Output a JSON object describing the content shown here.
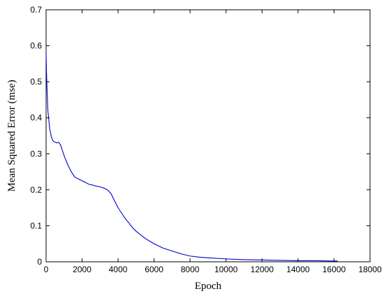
{
  "chart_data": {
    "type": "line",
    "title": "",
    "xlabel": "Epoch",
    "ylabel": "Mean Squared Error (mse)",
    "xlim": [
      0,
      18000
    ],
    "ylim": [
      0,
      0.7
    ],
    "xticks": [
      0,
      2000,
      4000,
      6000,
      8000,
      10000,
      12000,
      14000,
      16000,
      18000
    ],
    "xtick_labels": [
      "0",
      "2000",
      "4000",
      "6000",
      "8000",
      "10000",
      "12000",
      "14000",
      "16000",
      "18000"
    ],
    "yticks": [
      0,
      0.1,
      0.2,
      0.3,
      0.4,
      0.5,
      0.6,
      0.7
    ],
    "ytick_labels": [
      "0",
      "0.1",
      "0.2",
      "0.3",
      "0.4",
      "0.5",
      "0.6",
      "0.7"
    ],
    "grid": false,
    "series": [
      {
        "color": "#0000cc",
        "x": [
          0,
          20,
          60,
          100,
          200,
          300,
          400,
          600,
          700,
          800,
          900,
          1000,
          1200,
          1400,
          1600,
          1800,
          2000,
          2200,
          2400,
          2600,
          2800,
          3000,
          3200,
          3400,
          3600,
          3800,
          4000,
          4200,
          4400,
          4600,
          4800,
          5000,
          5500,
          6000,
          6500,
          7000,
          7500,
          8000,
          8500,
          9000,
          10000,
          11000,
          12000,
          13000,
          14000,
          15000,
          16000,
          16200
        ],
        "y": [
          0.58,
          0.53,
          0.47,
          0.42,
          0.37,
          0.345,
          0.335,
          0.33,
          0.332,
          0.325,
          0.31,
          0.295,
          0.27,
          0.25,
          0.235,
          0.23,
          0.225,
          0.22,
          0.215,
          0.213,
          0.21,
          0.208,
          0.205,
          0.2,
          0.19,
          0.17,
          0.15,
          0.135,
          0.12,
          0.108,
          0.095,
          0.085,
          0.065,
          0.05,
          0.038,
          0.03,
          0.022,
          0.016,
          0.013,
          0.011,
          0.008,
          0.006,
          0.005,
          0.004,
          0.003,
          0.003,
          0.002,
          0.002
        ]
      }
    ]
  }
}
